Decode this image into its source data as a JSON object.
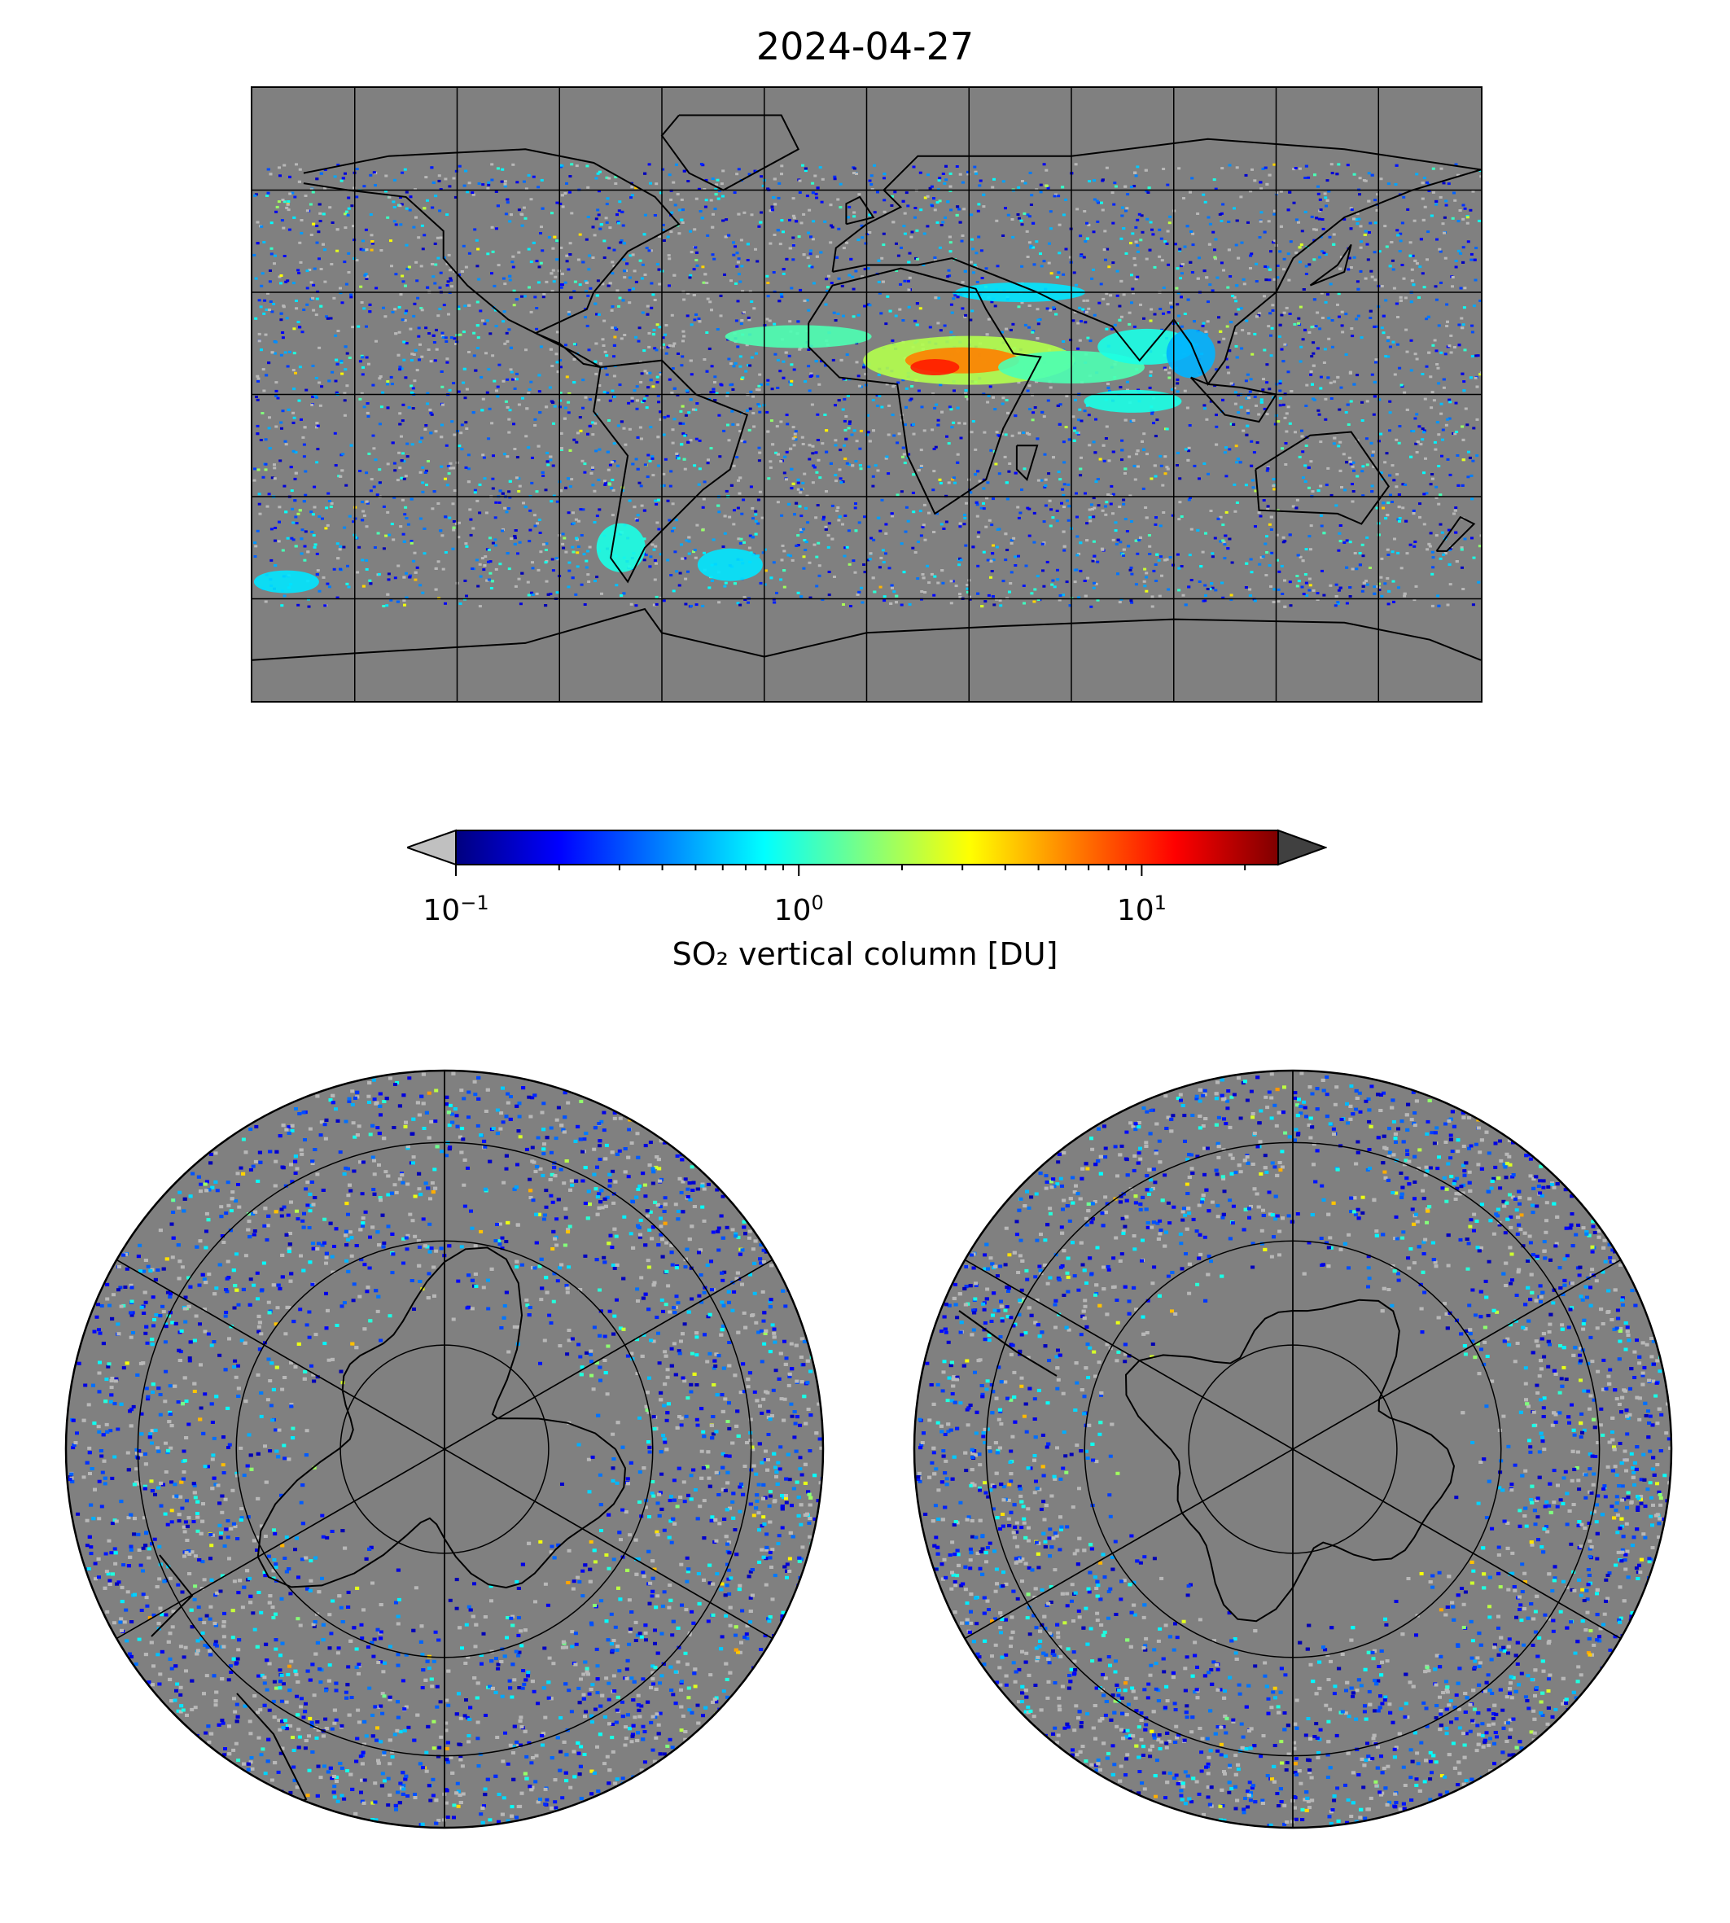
{
  "title": "2024-04-27",
  "colorbar": {
    "label": "SO₂ vertical column [DU]",
    "scale": "log",
    "colormap": "jet",
    "range": [
      0.1,
      25
    ],
    "ticks": [
      {
        "value": 0.1,
        "base": "10",
        "exp": "−1"
      },
      {
        "value": 1,
        "base": "10",
        "exp": "0"
      },
      {
        "value": 10,
        "base": "10",
        "exp": "1"
      }
    ],
    "extend_low_color": "#c0c0c0",
    "extend_high_color": "#404040"
  },
  "maps": {
    "global": {
      "projection": "plate-carree",
      "background": "#808080",
      "grid": true
    },
    "north_polar": {
      "projection": "north-polar-stereographic",
      "background": "#808080",
      "grid": true
    },
    "south_polar": {
      "projection": "south-polar-stereographic",
      "background": "#808080",
      "grid": true
    }
  },
  "colors": {
    "land_outline": "#000000",
    "no_data": "#808080",
    "jet_stops": [
      "#00007f",
      "#0000ff",
      "#007fff",
      "#00ffff",
      "#7fff7f",
      "#ffff00",
      "#ff7f00",
      "#ff0000",
      "#7f0000"
    ]
  }
}
